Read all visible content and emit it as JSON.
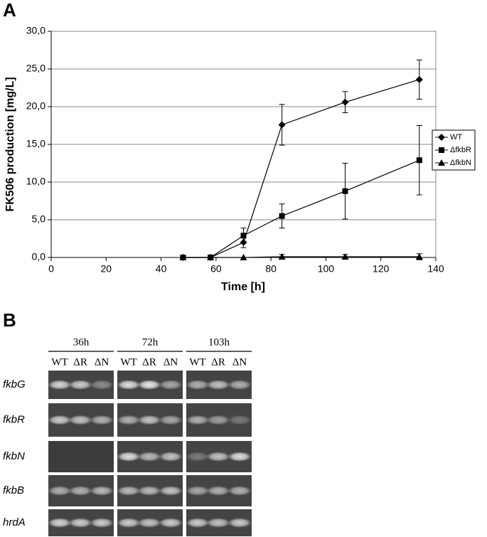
{
  "panel_a_label": "A",
  "chart_data": {
    "type": "line",
    "x_label": "Time [h]",
    "y_label": "FK506 production [mg/L]",
    "x": [
      48,
      58,
      70,
      84,
      107,
      134
    ],
    "series": [
      {
        "name": "WT",
        "color": "#000000",
        "marker": "diamond",
        "values": [
          0,
          0,
          2.0,
          17.6,
          20.6,
          23.6
        ],
        "errors": [
          0,
          0,
          0.7,
          2.7,
          1.4,
          2.6
        ]
      },
      {
        "name": "ΔfkbR",
        "color": "#000000",
        "marker": "square",
        "values": [
          0,
          0,
          2.9,
          5.5,
          8.8,
          12.9
        ],
        "errors": [
          0,
          0,
          1.0,
          1.6,
          3.7,
          4.6
        ]
      },
      {
        "name": "ΔfkbN",
        "color": "#000000",
        "marker": "triangle",
        "values": [
          0,
          0,
          0,
          0.1,
          0.1,
          0.1
        ],
        "errors": [
          0,
          0,
          0,
          0.3,
          0.3,
          0.4
        ]
      }
    ],
    "xlim": [
      0,
      140
    ],
    "xticks": [
      0,
      20,
      40,
      60,
      80,
      100,
      120,
      140
    ],
    "ylim": [
      0,
      30
    ],
    "yticks": [
      {
        "value": 0,
        "label": "0,0"
      },
      {
        "value": 5,
        "label": "5,0"
      },
      {
        "value": 10,
        "label": "10,0"
      },
      {
        "value": 15,
        "label": "15,0"
      },
      {
        "value": 20,
        "label": "20,0"
      },
      {
        "value": 25,
        "label": "25,0"
      },
      {
        "value": 30,
        "label": "30,0"
      }
    ],
    "grid": true,
    "legend": "right"
  },
  "panel_b_label": "B",
  "gel": {
    "time_points": [
      "36h",
      "72h",
      "103h"
    ],
    "lanes": [
      "WT",
      "ΔR",
      "ΔN"
    ],
    "genes": [
      "fkbG",
      "fkbR",
      "fkbN",
      "fkbB",
      "hrdA"
    ]
  }
}
